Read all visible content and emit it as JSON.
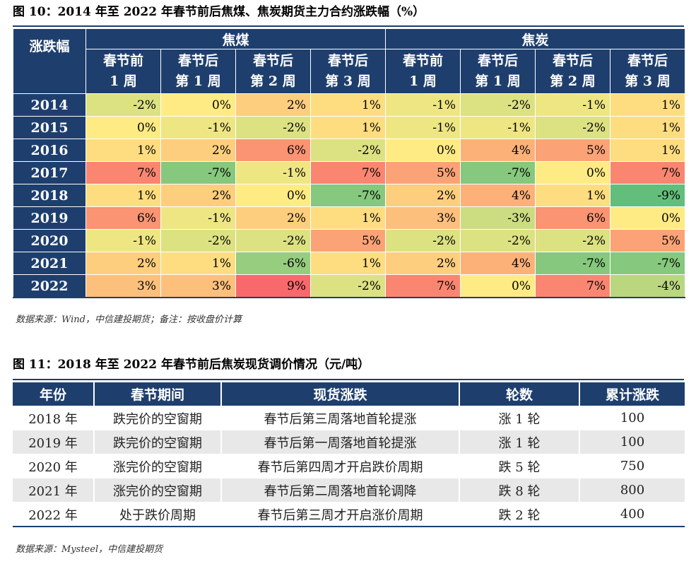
{
  "figure1": {
    "title": "图 10：2014 年至 2022 年春节前后焦煤、焦炭期货主力合约涨跌幅（%）",
    "corner_label": "涨跌幅",
    "groups": [
      "焦煤",
      "焦炭"
    ],
    "sub_headers": [
      {
        "line1": "春节前",
        "line2": "1 周"
      },
      {
        "line1": "春节后",
        "line2": "第 1 周"
      },
      {
        "line1": "春节后",
        "line2": "第 2 周"
      },
      {
        "line1": "春节后",
        "line2": "第 3 周"
      },
      {
        "line1": "春节前",
        "line2": "1 周"
      },
      {
        "line1": "春节后",
        "line2": "第 1 周"
      },
      {
        "line1": "春节后",
        "line2": "第 2 周"
      },
      {
        "line1": "春节后",
        "line2": "第 3 周"
      }
    ],
    "rows": [
      {
        "year": "2014",
        "values": [
          "-2%",
          "0%",
          "2%",
          "1%",
          "-1%",
          "-2%",
          "-1%",
          "1%"
        ]
      },
      {
        "year": "2015",
        "values": [
          "0%",
          "-1%",
          "-2%",
          "1%",
          "-1%",
          "-1%",
          "-2%",
          "1%"
        ]
      },
      {
        "year": "2016",
        "values": [
          "1%",
          "2%",
          "6%",
          "-2%",
          "0%",
          "4%",
          "5%",
          "1%"
        ]
      },
      {
        "year": "2017",
        "values": [
          "7%",
          "-7%",
          "-1%",
          "7%",
          "5%",
          "-7%",
          "0%",
          "7%"
        ]
      },
      {
        "year": "2018",
        "values": [
          "1%",
          "2%",
          "0%",
          "-7%",
          "2%",
          "4%",
          "1%",
          "-9%"
        ]
      },
      {
        "year": "2019",
        "values": [
          "6%",
          "-1%",
          "2%",
          "1%",
          "3%",
          "-3%",
          "6%",
          "0%"
        ]
      },
      {
        "year": "2020",
        "values": [
          "-1%",
          "-2%",
          "-2%",
          "5%",
          "-2%",
          "-2%",
          "-2%",
          "5%"
        ]
      },
      {
        "year": "2021",
        "values": [
          "2%",
          "1%",
          "-6%",
          "1%",
          "2%",
          "4%",
          "-7%",
          "-7%"
        ]
      },
      {
        "year": "2022",
        "values": [
          "3%",
          "3%",
          "9%",
          "-2%",
          "7%",
          "0%",
          "7%",
          "-4%"
        ]
      }
    ],
    "source": "数据来源：Wind，中信建投期货；备注：按收盘价计算",
    "heat_colors": {
      "neg_strong": "#63be7b",
      "neutral": "#ffeb84",
      "pos_strong": "#f8696b"
    }
  },
  "figure2": {
    "title": "图 11：2018 年至 2022 年春节前后焦炭现货调价情况（元/吨）",
    "headers": [
      "年份",
      "春节期间",
      "现货涨跌",
      "轮数",
      "累计涨跌"
    ],
    "rows": [
      [
        "2018 年",
        "跌完价的空窗期",
        "春节后第三周落地首轮提涨",
        "涨 1 轮",
        "100"
      ],
      [
        "2019 年",
        "跌完价的空窗期",
        "春节后第一周落地首轮提涨",
        "涨 1 轮",
        "100"
      ],
      [
        "2020 年",
        "涨完价的空窗期",
        "春节后第四周才开启跌价周期",
        "跌 5 轮",
        "750"
      ],
      [
        "2021 年",
        "涨完价的空窗期",
        "春节后第二周落地首轮调降",
        "跌 8 轮",
        "800"
      ],
      [
        "2022 年",
        "处于跌价周期",
        "春节后第三周才开启涨价周期",
        "跌 2 轮",
        "400"
      ]
    ],
    "source": "数据来源：Mysteel，中信建投期货"
  }
}
